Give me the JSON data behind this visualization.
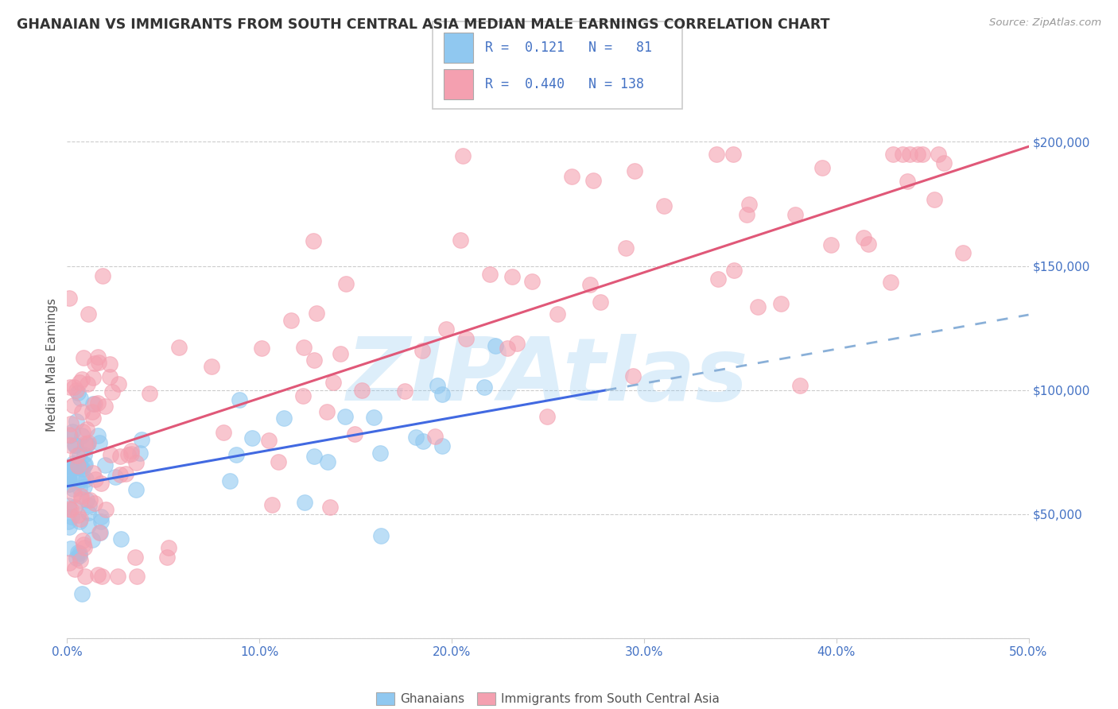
{
  "title": "GHANAIAN VS IMMIGRANTS FROM SOUTH CENTRAL ASIA MEDIAN MALE EARNINGS CORRELATION CHART",
  "source_text": "Source: ZipAtlas.com",
  "ylabel": "Median Male Earnings",
  "xlim": [
    0.0,
    0.5
  ],
  "ylim": [
    0,
    220000
  ],
  "xtick_labels": [
    "0.0%",
    "10.0%",
    "20.0%",
    "30.0%",
    "40.0%",
    "50.0%"
  ],
  "xtick_vals": [
    0.0,
    0.1,
    0.2,
    0.3,
    0.4,
    0.5
  ],
  "ytick_vals": [
    0,
    50000,
    100000,
    150000,
    200000
  ],
  "ytick_labels": [
    "",
    "$50,000",
    "$100,000",
    "$150,000",
    "$200,000"
  ],
  "r_ghanaian": 0.121,
  "n_ghanaian": 81,
  "r_sca": 0.44,
  "n_sca": 138,
  "color_ghanaian": "#90C8F0",
  "color_sca": "#F4A0B0",
  "trendline_ghanaian_solid": "#4169E1",
  "trendline_ghanaian_dashed": "#8AB0D8",
  "trendline_sca": "#E05878",
  "background_color": "#FFFFFF",
  "watermark": "ZIPAtlas",
  "watermark_color": "#90C8F0",
  "legend_label_ghanaian": "Ghanaians",
  "legend_label_sca": "Immigrants from South Central Asia",
  "title_color": "#333333",
  "axis_label_color": "#555555",
  "tick_color": "#4472C4"
}
